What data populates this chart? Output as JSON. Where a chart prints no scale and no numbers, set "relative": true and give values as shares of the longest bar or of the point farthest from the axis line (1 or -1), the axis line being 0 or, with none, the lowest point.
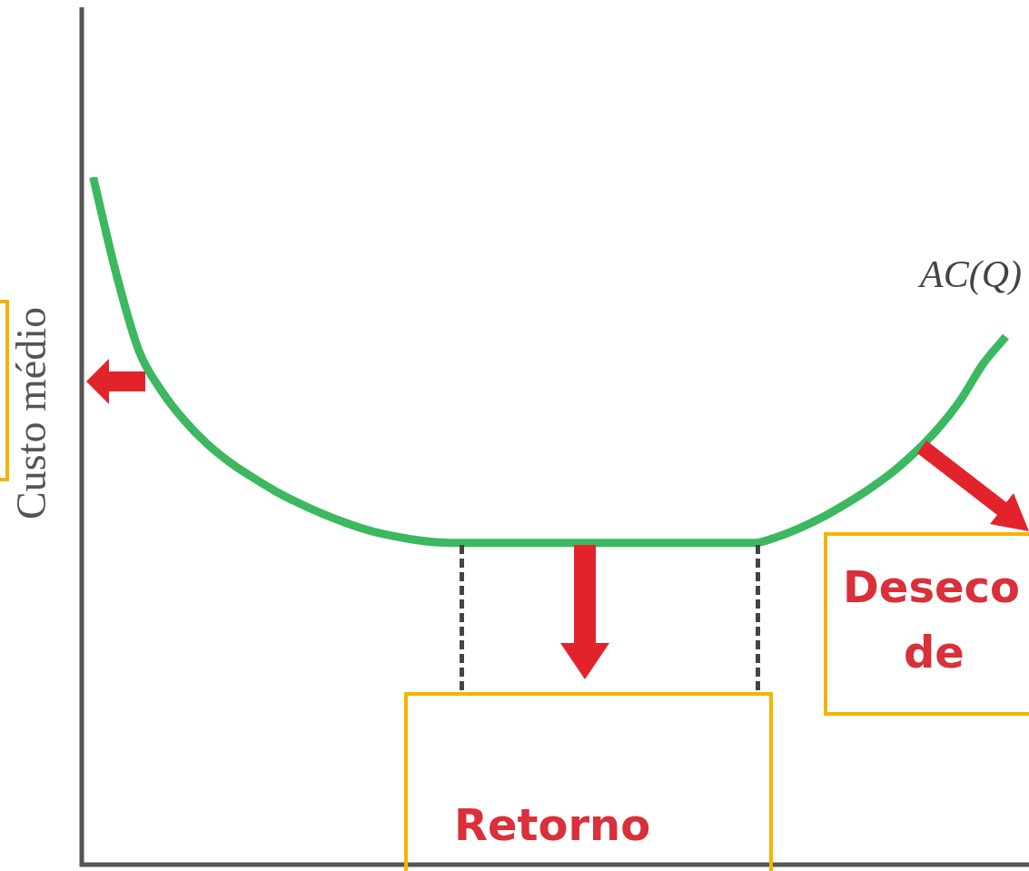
{
  "chart_data": {
    "type": "line",
    "relative": true,
    "ylabel": "Custo médio",
    "categories": [
      null,
      null,
      null,
      null,
      null,
      null,
      null,
      null,
      null,
      null,
      null,
      null,
      null,
      null,
      null,
      null,
      null,
      null,
      null,
      null,
      null,
      null,
      null,
      null,
      null,
      null,
      null,
      null,
      null,
      null,
      null,
      null,
      null,
      null,
      null,
      null,
      null,
      null,
      null,
      null,
      null
    ],
    "series": [
      {
        "name": "AC(Q)",
        "color": "#3cb860",
        "values": [
          1.0,
          0.861,
          0.748,
          0.689,
          0.646,
          0.612,
          0.585,
          0.563,
          0.543,
          0.526,
          0.511,
          0.498,
          0.487,
          0.479,
          0.473,
          0.469,
          0.468,
          0.468,
          0.468,
          0.468,
          0.468,
          0.468,
          0.468,
          0.468,
          0.468,
          0.468,
          0.468,
          0.468,
          0.468,
          0.468,
          0.477,
          0.49,
          0.506,
          0.525,
          0.546,
          0.57,
          0.599,
          0.633,
          0.675,
          0.728,
          0.768
        ]
      }
    ],
    "annotations": [
      "Retorno",
      "Deseco",
      "de"
    ],
    "legend": false,
    "marker": "none",
    "line_style": "solid"
  }
}
